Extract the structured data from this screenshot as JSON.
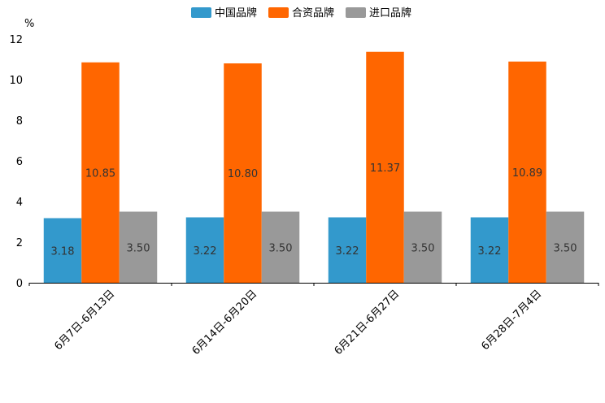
{
  "chart_data": {
    "type": "bar",
    "ylabel": "%",
    "ylim": [
      0,
      12
    ],
    "yticks": [
      0,
      2,
      4,
      6,
      8,
      10,
      12
    ],
    "categories": [
      "6月7日-6月13日",
      "6月14日-6月20日",
      "6月21日-6月27日",
      "6月28日-7月4日"
    ],
    "series": [
      {
        "name": "中国品牌",
        "color": "#3399CC",
        "values": [
          3.18,
          3.22,
          3.22,
          3.22
        ]
      },
      {
        "name": "合资品牌",
        "color": "#FF6600",
        "values": [
          10.85,
          10.8,
          11.37,
          10.89
        ]
      },
      {
        "name": "进口品牌",
        "color": "#999999",
        "values": [
          3.5,
          3.5,
          3.5,
          3.5
        ]
      }
    ],
    "legend_position": "top-center",
    "grid": false
  }
}
